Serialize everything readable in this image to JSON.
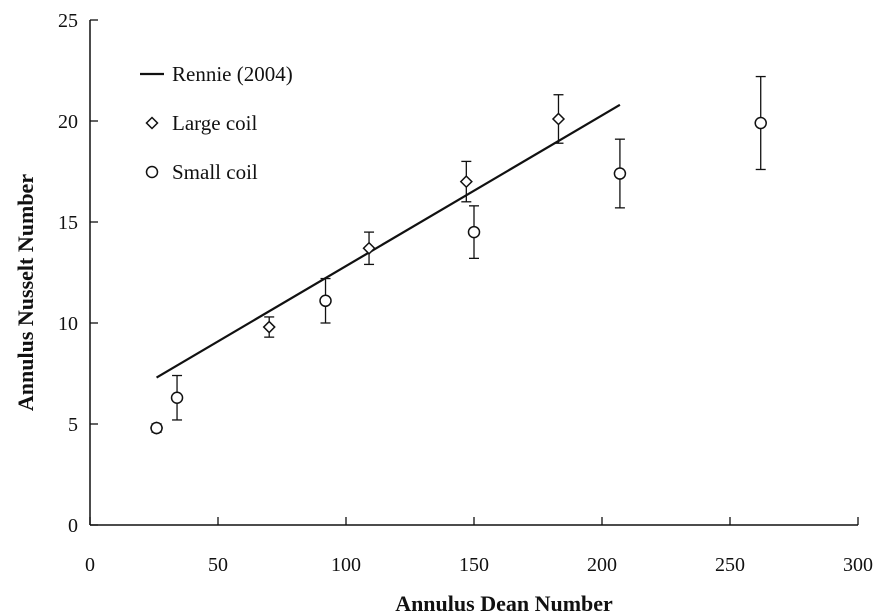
{
  "chart_data": {
    "type": "scatter",
    "xlabel": "Annulus Dean Number",
    "ylabel": "Annulus Nusselt Number",
    "xlim": [
      0,
      300
    ],
    "ylim": [
      0,
      25
    ],
    "xticks": [
      0,
      50,
      100,
      150,
      200,
      250,
      300
    ],
    "yticks": [
      0,
      5,
      10,
      15,
      20,
      25
    ],
    "grid": false,
    "legend_position": "top-left",
    "series": [
      {
        "name": "Rennie (2004)",
        "kind": "line",
        "marker": "none",
        "points": [
          {
            "x": 26,
            "y": 7.3
          },
          {
            "x": 207,
            "y": 20.8
          }
        ]
      },
      {
        "name": "Large coil",
        "kind": "scatter",
        "marker": "diamond",
        "points": [
          {
            "x": 26,
            "y": 4.8,
            "err": 0.2
          },
          {
            "x": 70,
            "y": 9.8,
            "err": 0.5
          },
          {
            "x": 109,
            "y": 13.7,
            "err": 0.8
          },
          {
            "x": 147,
            "y": 17.0,
            "err": 1.0
          },
          {
            "x": 183,
            "y": 20.1,
            "err": 1.2
          }
        ]
      },
      {
        "name": "Small coil",
        "kind": "scatter",
        "marker": "circle",
        "points": [
          {
            "x": 26,
            "y": 4.8,
            "err": 0.2
          },
          {
            "x": 34,
            "y": 6.3,
            "err": 1.1
          },
          {
            "x": 92,
            "y": 11.1,
            "err": 1.1
          },
          {
            "x": 150,
            "y": 14.5,
            "err": 1.3
          },
          {
            "x": 207,
            "y": 17.4,
            "err": 1.7
          },
          {
            "x": 262,
            "y": 19.9,
            "err": 2.3
          }
        ]
      }
    ]
  }
}
